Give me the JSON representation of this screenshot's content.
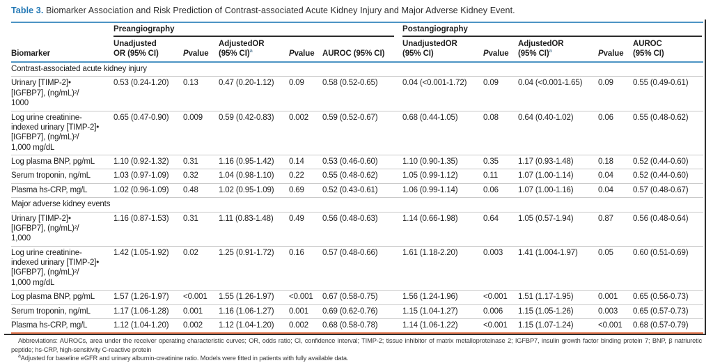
{
  "title": {
    "label": "Table 3.",
    "text": "Biomarker Association and Risk Prediction of Contrast-associated Acute Kidney Injury and Major Adverse Kidney Event."
  },
  "table": {
    "group_pre": "Preangiography",
    "group_post": "Postangiography",
    "col_biomarker": "Biomarker",
    "col_pre_unadjusted_l1": "Unadjusted",
    "col_pre_unadjusted_l2": "OR (95% CI)",
    "col_p_italic": "P",
    "col_p_rest": "value",
    "col_adjusted_l1": "AdjustedOR",
    "col_adjusted_l2": "(95% CI)",
    "col_adjusted_sup": "a",
    "col_auroc_pre": "AUROC (95% CI)",
    "col_post_unadjusted_l1": "UnadjustedOR",
    "col_post_unadjusted_l2": "(95% CI)",
    "col_auroc_post_l1": "AUROC",
    "col_auroc_post_l2": "(95% CI)",
    "sections": [
      {
        "header": "Contrast-associated acute kidney injury",
        "rows": [
          {
            "biomarker": "Urinary [TIMP-2]•\n[IGFBP7], (ng/mL)²/\n1000",
            "values": [
              "0.53 (0.24-1.20)",
              "0.13",
              "0.47 (0.20-1.12)",
              "0.09",
              "0.58 (0.52-0.65)",
              "0.04 (<0.001-1.72)",
              "0.09",
              "0.04 (<0.001-1.65)",
              "0.09",
              "0.55 (0.49-0.61)"
            ]
          },
          {
            "biomarker": "Log urine creatinine-\nindexed urinary [TIMP-2]•\n[IGFBP7], (ng/mL)²/\n1,000 mg/dL",
            "values": [
              "0.65 (0.47-0.90)",
              "0.009",
              "0.59 (0.42-0.83)",
              "0.002",
              "0.59 (0.52-0.67)",
              "0.68 (0.44-1.05)",
              "0.08",
              "0.64 (0.40-1.02)",
              "0.06",
              "0.55 (0.48-0.62)"
            ]
          },
          {
            "biomarker": "Log plasma BNP, pg/mL",
            "values": [
              "1.10 (0.92-1.32)",
              "0.31",
              "1.16 (0.95-1.42)",
              "0.14",
              "0.53 (0.46-0.60)",
              "1.10 (0.90-1.35)",
              "0.35",
              "1.17 (0.93-1.48)",
              "0.18",
              "0.52 (0.44-0.60)"
            ]
          },
          {
            "biomarker": "Serum troponin, ng/mL",
            "values": [
              "1.03 (0.97-1.09)",
              "0.32",
              "1.04 (0.98-1.10)",
              "0.22",
              "0.55 (0.48-0.62)",
              "1.05 (0.99-1.12)",
              "0.11",
              "1.07 (1.00-1.14)",
              "0.04",
              "0.52 (0.44-0.60)"
            ]
          },
          {
            "biomarker": "Plasma hs-CRP, mg/L",
            "values": [
              "1.02 (0.96-1.09)",
              "0.48",
              "1.02 (0.95-1.09)",
              "0.69",
              "0.52 (0.43-0.61)",
              "1.06 (0.99-1.14)",
              "0.06",
              "1.07 (1.00-1.16)",
              "0.04",
              "0.57 (0.48-0.67)"
            ]
          }
        ]
      },
      {
        "header": "Major adverse kidney events",
        "rows": [
          {
            "biomarker": "Urinary [TIMP-2]•\n[IGFBP7], (ng/mL)²/\n1,000",
            "values": [
              "1.16 (0.87-1.53)",
              "0.31",
              "1.11 (0.83-1.48)",
              "0.49",
              "0.56 (0.48-0.63)",
              "1.14 (0.66-1.98)",
              "0.64",
              "1.05 (0.57-1.94)",
              "0.87",
              "0.56 (0.48-0.64)"
            ]
          },
          {
            "biomarker": "Log urine creatinine-\nindexed urinary [TIMP-2]•\n[IGFBP7], (ng/mL)²/\n1,000 mg/dL",
            "values": [
              "1.42 (1.05-1.92)",
              "0.02",
              "1.25 (0.91-1.72)",
              "0.16",
              "0.57 (0.48-0.66)",
              "1.61 (1.18-2.20)",
              "0.003",
              "1.41 (1.004-1.97)",
              "0.05",
              "0.60 (0.51-0.69)"
            ]
          },
          {
            "biomarker": "Log plasma BNP, pg/mL",
            "values": [
              "1.57 (1.26-1.97)",
              "<0.001",
              "1.55 (1.26-1.97)",
              "<0.001",
              "0.67 (0.58-0.75)",
              "1.56 (1.24-1.96)",
              "<0.001",
              "1.51 (1.17-1.95)",
              "0.001",
              "0.65 (0.56-0.73)"
            ]
          },
          {
            "biomarker": "Serum troponin, ng/mL",
            "values": [
              "1.17 (1.06-1.28)",
              "0.001",
              "1.16 (1.06-1.27)",
              "0.001",
              "0.69 (0.62-0.76)",
              "1.15 (1.04-1.27)",
              "0.006",
              "1.15 (1.05-1.26)",
              "0.003",
              "0.65 (0.57-0.73)"
            ]
          },
          {
            "biomarker": "Plasma hs-CRP, mg/L",
            "values": [
              "1.12 (1.04-1.20)",
              "0.002",
              "1.12 (1.04-1.20)",
              "0.002",
              "0.68 (0.58-0.78)",
              "1.14 (1.06-1.22)",
              "<0.001",
              "1.15 (1.07-1.24)",
              "<0.001",
              "0.68 (0.57-0.79)"
            ]
          }
        ]
      }
    ]
  },
  "footnotes": {
    "abbreviations": "Abbreviations: AUROCs, area under the receiver operating characteristic curves; OR, odds ratio; CI, confidence interval; TIMP-2; tissue inhibitor of matrix metalloproteinase 2; IGFBP7, insulin growth factor binding protein 7; BNP, β natriuretic peptide; hs-CRP, high-sensitivity C-reactive protein",
    "adjusted_sup": "a",
    "adjusted": "Adjusted for baseline eGFR and urinary albumin-creatinine ratio. Models were fitted in patients with fully available data.",
    "accent_blue": "#2579b5",
    "rule_blue": "#4d94c4",
    "rule_orange": "#e0744c"
  }
}
